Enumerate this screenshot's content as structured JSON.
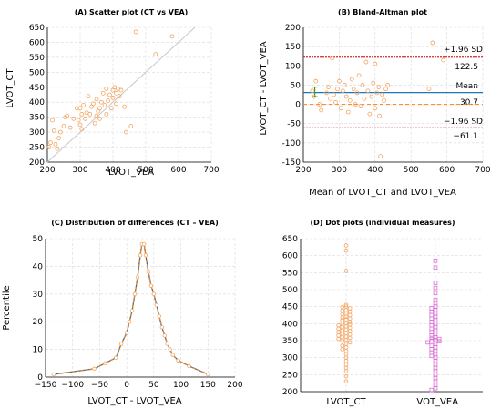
{
  "chart_data": [
    {
      "type": "scatter",
      "title": "(A) Scatter plot (CT vs VEA)",
      "xlabel": "LVOT_VEA",
      "ylabel": "LVOT_CT",
      "xlim": [
        200,
        700
      ],
      "ylim": [
        200,
        650
      ],
      "xticks": [
        "200",
        "300",
        "400",
        "500",
        "600",
        "700"
      ],
      "yticks": [
        "200",
        "250",
        "300",
        "350",
        "400",
        "450",
        "500",
        "550",
        "600",
        "650"
      ],
      "grid": true,
      "identity_line": true,
      "colors": {
        "points": "#f4a460",
        "line": "#c8c8c8"
      },
      "points": [
        [
          205,
          250
        ],
        [
          210,
          265
        ],
        [
          215,
          340
        ],
        [
          220,
          305
        ],
        [
          225,
          260
        ],
        [
          230,
          245
        ],
        [
          235,
          280
        ],
        [
          240,
          300
        ],
        [
          250,
          320
        ],
        [
          255,
          350
        ],
        [
          260,
          355
        ],
        [
          270,
          315
        ],
        [
          280,
          345
        ],
        [
          290,
          380
        ],
        [
          295,
          340
        ],
        [
          300,
          380
        ],
        [
          300,
          325
        ],
        [
          305,
          360
        ],
        [
          305,
          310
        ],
        [
          310,
          390
        ],
        [
          315,
          345
        ],
        [
          320,
          365
        ],
        [
          325,
          420
        ],
        [
          330,
          360
        ],
        [
          335,
          385
        ],
        [
          340,
          395
        ],
        [
          345,
          330
        ],
        [
          350,
          355
        ],
        [
          350,
          410
        ],
        [
          355,
          370
        ],
        [
          360,
          380
        ],
        [
          360,
          345
        ],
        [
          365,
          400
        ],
        [
          370,
          430
        ],
        [
          375,
          390
        ],
        [
          380,
          445
        ],
        [
          380,
          360
        ],
        [
          385,
          405
        ],
        [
          390,
          425
        ],
        [
          395,
          380
        ],
        [
          400,
          440
        ],
        [
          400,
          415
        ],
        [
          405,
          450
        ],
        [
          410,
          395
        ],
        [
          410,
          430
        ],
        [
          415,
          445
        ],
        [
          420,
          420
        ],
        [
          425,
          440
        ],
        [
          435,
          385
        ],
        [
          440,
          300
        ],
        [
          455,
          320
        ],
        [
          470,
          635
        ],
        [
          530,
          560
        ],
        [
          580,
          620
        ]
      ]
    },
    {
      "type": "scatter",
      "title": "(B) Bland-Altman plot",
      "xlabel": "Mean of LVOT_CT and LVOT_VEA",
      "ylabel": "LVOT_CT - LVOT_VEA",
      "xlim": [
        200,
        700
      ],
      "ylim": [
        -150,
        200
      ],
      "xticks": [
        "200",
        "300",
        "400",
        "500",
        "600",
        "700"
      ],
      "yticks": [
        "-150",
        "-100",
        "-50",
        "0",
        "50",
        "100",
        "150",
        "200"
      ],
      "grid": true,
      "lines": {
        "upper": {
          "label": "+1.96 SD",
          "value_label": "122.5",
          "value": 122.5,
          "color": "#d62728"
        },
        "mean": {
          "label": "Mean",
          "value_label": "30.7",
          "value": 30.7,
          "color": "#1f77b4"
        },
        "lower": {
          "label": "−1.96 SD",
          "value_label": "−61.1",
          "value": -61.1,
          "color": "#d62728"
        },
        "zero": {
          "value": 0,
          "color": "#ff7f0e"
        }
      },
      "ci_bar": {
        "x": 232,
        "low": 20,
        "high": 45,
        "color": "#2ca02c"
      },
      "colors": {
        "points": "#f4a460"
      },
      "points": [
        [
          225,
          35
        ],
        [
          230,
          20
        ],
        [
          235,
          60
        ],
        [
          245,
          0
        ],
        [
          250,
          -15
        ],
        [
          265,
          30
        ],
        [
          270,
          45
        ],
        [
          275,
          15
        ],
        [
          280,
          120
        ],
        [
          285,
          25
        ],
        [
          290,
          5
        ],
        [
          295,
          40
        ],
        [
          300,
          60
        ],
        [
          305,
          -10
        ],
        [
          310,
          35
        ],
        [
          315,
          50
        ],
        [
          320,
          20
        ],
        [
          325,
          -20
        ],
        [
          330,
          10
        ],
        [
          335,
          65
        ],
        [
          340,
          40
        ],
        [
          345,
          0
        ],
        [
          350,
          30
        ],
        [
          355,
          75
        ],
        [
          360,
          -5
        ],
        [
          365,
          50
        ],
        [
          370,
          15
        ],
        [
          375,
          110
        ],
        [
          380,
          35
        ],
        [
          385,
          -25
        ],
        [
          390,
          20
        ],
        [
          395,
          55
        ],
        [
          400,
          105
        ],
        [
          400,
          -10
        ],
        [
          405,
          30
        ],
        [
          410,
          45
        ],
        [
          412,
          -30
        ],
        [
          415,
          -135
        ],
        [
          420,
          25
        ],
        [
          425,
          10
        ],
        [
          430,
          40
        ],
        [
          435,
          50
        ],
        [
          550,
          40
        ],
        [
          560,
          160
        ],
        [
          590,
          115
        ]
      ]
    },
    {
      "type": "line",
      "title": "(C) Distribution of differences (CT – VEA)",
      "xlabel": "LVOT_CT - LVOT_VEA",
      "ylabel": "Percentile",
      "xlim": [
        -150,
        200
      ],
      "ylim": [
        0,
        50
      ],
      "xticks": [
        "−150",
        "−100",
        "−50",
        "0",
        "50",
        "100",
        "150",
        "200"
      ],
      "yticks": [
        "0",
        "10",
        "20",
        "30",
        "40",
        "50"
      ],
      "grid": true,
      "colors": {
        "line": "#1f77b4",
        "dash": "#ff7f0e",
        "points": "#f4a460"
      },
      "points": [
        [
          -135,
          1
        ],
        [
          -60,
          3
        ],
        [
          -40,
          5
        ],
        [
          -20,
          7
        ],
        [
          -10,
          12
        ],
        [
          0,
          16
        ],
        [
          5,
          20
        ],
        [
          10,
          24
        ],
        [
          15,
          30
        ],
        [
          20,
          36
        ],
        [
          25,
          44
        ],
        [
          28,
          48
        ],
        [
          32,
          48
        ],
        [
          35,
          44
        ],
        [
          40,
          38
        ],
        [
          45,
          33
        ],
        [
          50,
          30
        ],
        [
          55,
          26
        ],
        [
          60,
          22
        ],
        [
          65,
          18
        ],
        [
          70,
          15
        ],
        [
          75,
          12
        ],
        [
          80,
          10
        ],
        [
          85,
          8
        ],
        [
          95,
          6
        ],
        [
          115,
          4
        ],
        [
          150,
          1
        ]
      ]
    },
    {
      "type": "scatter",
      "title": "(D) Dot plots (individual measures)",
      "categories": [
        "LVOT_CT",
        "LVOT_VEA"
      ],
      "ylim": [
        200,
        650
      ],
      "yticks": [
        "200",
        "250",
        "300",
        "350",
        "400",
        "450",
        "500",
        "550",
        "600",
        "650"
      ],
      "grid": true,
      "series": [
        {
          "name": "LVOT_CT",
          "color": "#f4a460",
          "marker": "circle",
          "values": [
            630,
            615,
            555,
            455,
            450,
            448,
            445,
            440,
            438,
            435,
            430,
            428,
            425,
            420,
            418,
            415,
            412,
            410,
            405,
            402,
            400,
            398,
            395,
            392,
            390,
            388,
            385,
            382,
            380,
            378,
            375,
            372,
            370,
            368,
            365,
            362,
            360,
            358,
            355,
            352,
            350,
            345,
            340,
            335,
            330,
            325,
            320,
            310,
            300,
            290,
            280,
            270,
            260,
            245,
            230
          ]
        },
        {
          "name": "LVOT_VEA",
          "color": "#da70d6",
          "marker": "square",
          "values": [
            585,
            565,
            520,
            505,
            490,
            470,
            460,
            450,
            445,
            440,
            435,
            430,
            425,
            420,
            415,
            410,
            405,
            400,
            395,
            390,
            385,
            380,
            375,
            370,
            365,
            360,
            358,
            355,
            352,
            350,
            348,
            345,
            340,
            335,
            330,
            325,
            320,
            315,
            310,
            305,
            300,
            290,
            280,
            270,
            260,
            250,
            240,
            230,
            220,
            210,
            205
          ]
        }
      ]
    }
  ]
}
